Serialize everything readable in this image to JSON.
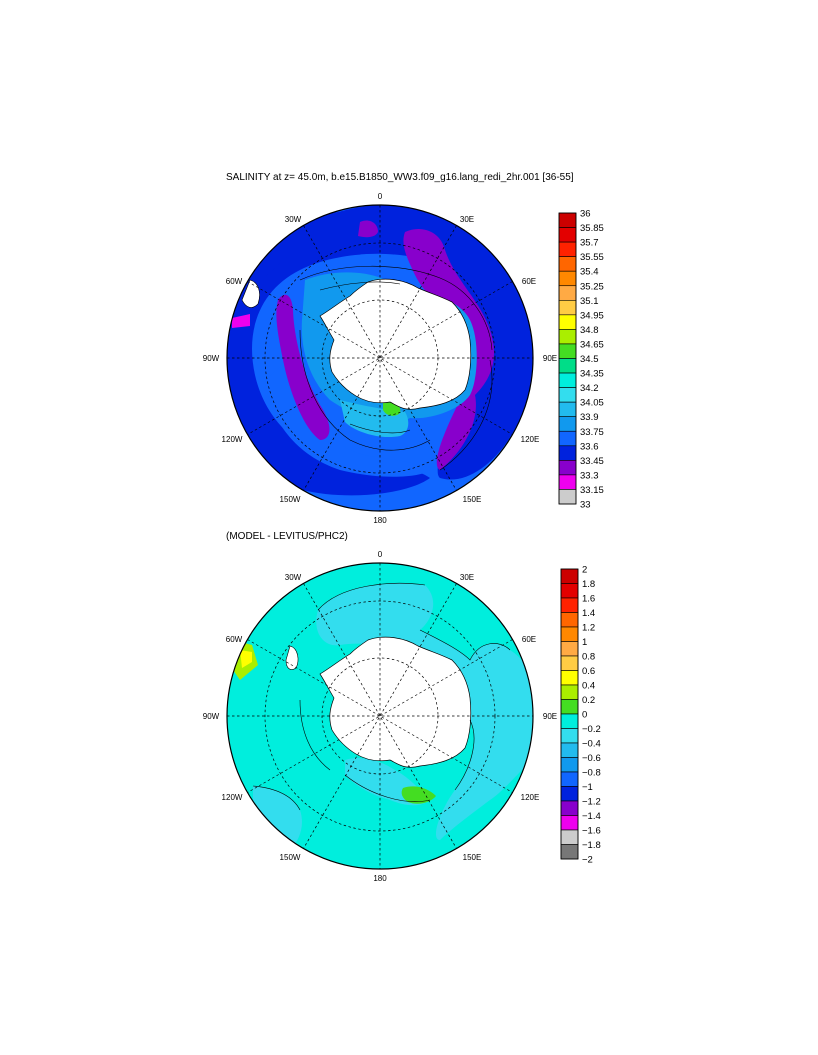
{
  "titles": {
    "top": "SALINITY at z=  45.0m, b.e15.B1850_WW3.f09_g16.lang_redi_2hr.001 [36-55]",
    "bottom": "(MODEL - LEVITUS/PHC2)"
  },
  "lon_labels": {
    "top": "0",
    "top_left": "30W",
    "top_right": "30E",
    "upper_left": "60W",
    "upper_right": "60E",
    "left": "90W",
    "right": "90E",
    "lower_left": "120W",
    "lower_right": "120E",
    "bottom_left": "150W",
    "bottom_right": "150E",
    "bottom": "180"
  },
  "salinity_colorbar": {
    "labels": [
      "36",
      "35.85",
      "35.7",
      "35.55",
      "35.4",
      "35.25",
      "35.1",
      "34.95",
      "34.8",
      "34.65",
      "34.5",
      "34.35",
      "34.2",
      "34.05",
      "33.9",
      "33.75",
      "33.6",
      "33.45",
      "33.3",
      "33.15",
      "33"
    ],
    "colors": [
      "#cc0000",
      "#e30000",
      "#ff2200",
      "#ff6600",
      "#ff8800",
      "#ffaa44",
      "#ffcc44",
      "#ffff00",
      "#aaee00",
      "#44dd22",
      "#00dd88",
      "#00eedd",
      "#33ddee",
      "#22bbee",
      "#1199ee",
      "#1166ff",
      "#0022dd",
      "#8800cc",
      "#ee00ee",
      "#cccccc"
    ]
  },
  "anomaly_colorbar": {
    "labels": [
      "2",
      "1.8",
      "1.6",
      "1.4",
      "1.2",
      "1",
      "0.8",
      "0.6",
      "0.4",
      "0.2",
      "0",
      "−0.2",
      "−0.4",
      "−0.6",
      "−0.8",
      "−1",
      "−1.2",
      "−1.4",
      "−1.6",
      "−1.8",
      "−2"
    ],
    "colors": [
      "#cc0000",
      "#e30000",
      "#ff2200",
      "#ff6600",
      "#ff8800",
      "#ffaa44",
      "#ffcc44",
      "#ffff00",
      "#aaee00",
      "#44dd22",
      "#00eedd",
      "#33ddee",
      "#22bbee",
      "#1199ee",
      "#1166ff",
      "#0022dd",
      "#8800cc",
      "#ee00ee",
      "#cccccc",
      "#777777"
    ]
  },
  "map_colors": {
    "ocean_deep_blue": "#0022dd",
    "mid_blue": "#1166ff",
    "purple": "#8800cc",
    "light_blue": "#1199ee",
    "cyan": "#00eedd",
    "cyan_light": "#33ddee",
    "green": "#44dd22",
    "land": "#ffffff"
  }
}
